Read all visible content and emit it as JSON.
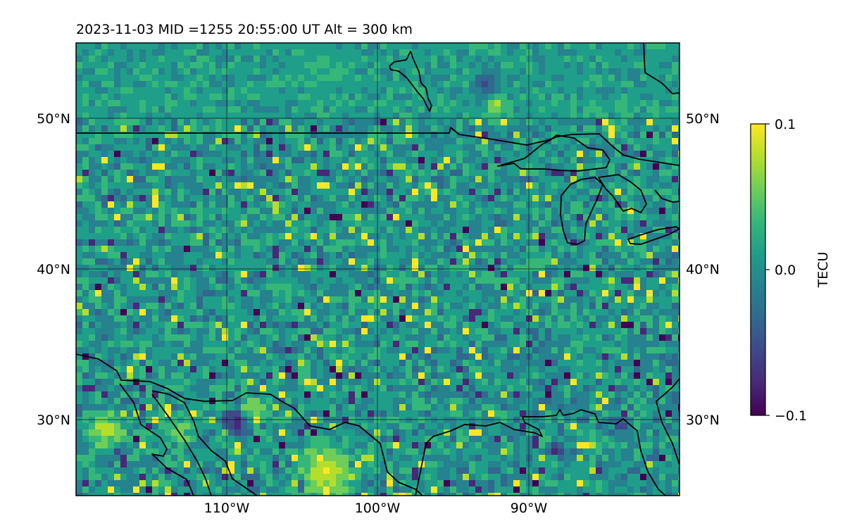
{
  "title": "2023-11-03  MID =1255    20:55:00  UT  Alt = 300 km",
  "map": {
    "lon_range": [
      -120,
      -80
    ],
    "lat_range": [
      25,
      55
    ],
    "lat_ticks": [
      {
        "value": 50,
        "label": "50°N"
      },
      {
        "value": 40,
        "label": "40°N"
      },
      {
        "value": 30,
        "label": "30°N"
      }
    ],
    "lon_ticks": [
      {
        "value": -110,
        "label": "110°W"
      },
      {
        "value": -100,
        "label": "100°W"
      },
      {
        "value": -90,
        "label": "90°W"
      }
    ],
    "grid": true,
    "coastlines": true,
    "borders": true
  },
  "colorbar": {
    "label": "TECU",
    "colormap": "viridis",
    "range": [
      -0.1,
      0.1
    ],
    "ticks": [
      {
        "value": 0.1,
        "label": "0.1"
      },
      {
        "value": 0.0,
        "label": "0.0"
      },
      {
        "value": -0.1,
        "label": "−0.1"
      }
    ]
  },
  "colors": {
    "viridis": [
      "#440154",
      "#482878",
      "#3e4989",
      "#31688e",
      "#26828e",
      "#1f9e89",
      "#35b779",
      "#6ece58",
      "#b5de2b",
      "#fde725"
    ],
    "outline": "#000000"
  }
}
